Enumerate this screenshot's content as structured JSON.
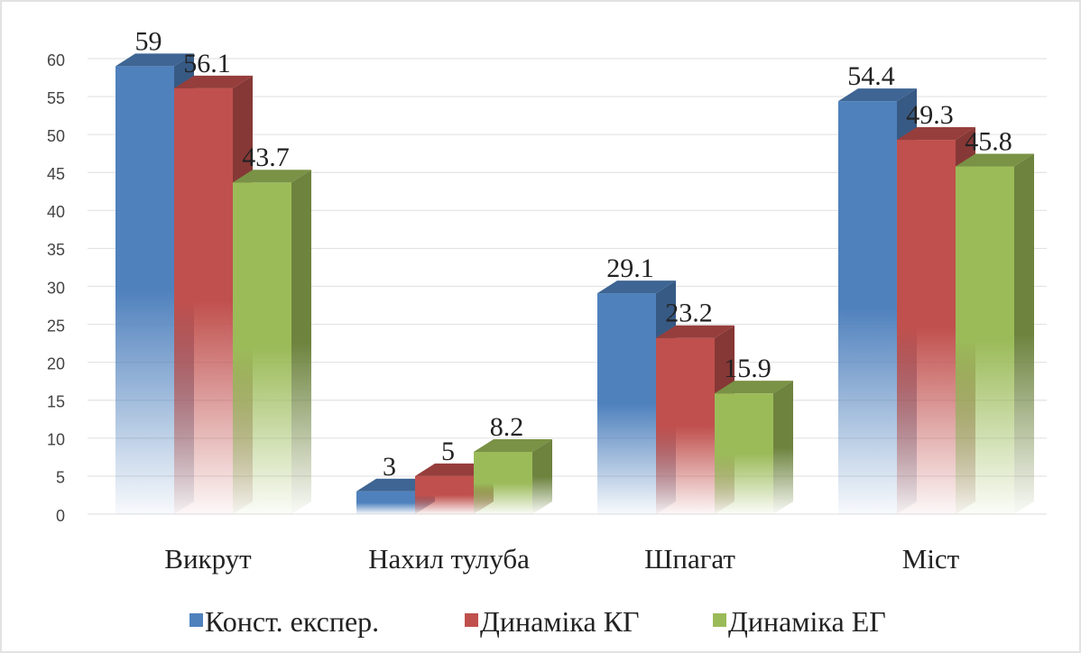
{
  "chart_data": {
    "type": "bar3d",
    "categories": [
      "Викрут",
      "Нахил тулуба",
      "Шпагат",
      "Міст"
    ],
    "series": [
      {
        "name": "Конст. експер.",
        "color": "#4f81bd",
        "values": [
          59,
          3,
          29.1,
          54.4
        ]
      },
      {
        "name": "Динаміка КГ",
        "color": "#c0504d",
        "values": [
          56.1,
          5,
          23.2,
          49.3
        ]
      },
      {
        "name": "Динаміка ЕГ",
        "color": "#9bbb59",
        "values": [
          43.7,
          8.2,
          15.9,
          45.8
        ]
      }
    ],
    "ylim": [
      0,
      60
    ],
    "yticks": [
      0,
      5,
      10,
      15,
      20,
      25,
      30,
      35,
      40,
      45,
      50,
      55,
      60
    ],
    "grid": true,
    "legend": "bottom"
  }
}
